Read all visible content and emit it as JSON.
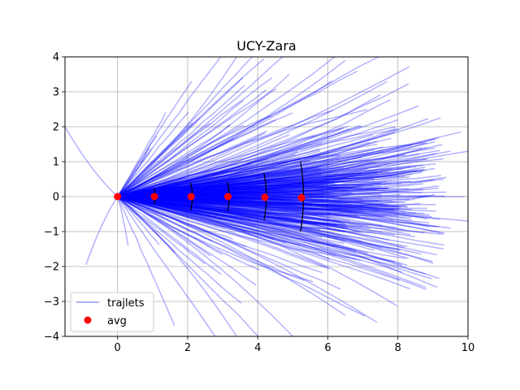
{
  "chart_data": {
    "type": "line",
    "title": "UCY-Zara",
    "xlabel": "",
    "ylabel": "",
    "xlim": [
      -1.5,
      10
    ],
    "ylim": [
      -4,
      4
    ],
    "x_ticks": [
      0,
      2,
      4,
      6,
      8,
      10
    ],
    "y_ticks": [
      -4,
      -3,
      -2,
      -1,
      0,
      1,
      2,
      3,
      4
    ],
    "x_tick_labels": [
      "0",
      "2",
      "4",
      "6",
      "8",
      "10"
    ],
    "y_tick_labels": [
      "−4",
      "−3",
      "−2",
      "−1",
      "0",
      "1",
      "2",
      "3",
      "4"
    ],
    "grid": true,
    "legend_position": "lower-left",
    "series": [
      {
        "name": "trajlets",
        "kind": "line",
        "color": "#0000ff",
        "alpha": 0.3,
        "count_estimate": 400,
        "example_endpoints": [
          [
            9.9,
            0.0
          ],
          [
            9.8,
            1.85
          ],
          [
            9.5,
            1.3
          ],
          [
            8.6,
            2.6
          ],
          [
            8.8,
            -2.6
          ],
          [
            7.4,
            -3.6
          ],
          [
            6.5,
            -3.4
          ],
          [
            5.0,
            -4.0
          ],
          [
            3.4,
            -4.0
          ],
          [
            6.5,
            3.9
          ],
          [
            3.4,
            4.0
          ],
          [
            4.9,
            3.5
          ],
          [
            -0.9,
            -1.95
          ],
          [
            -1.5,
            2.0
          ],
          [
            0.3,
            -1.4
          ],
          [
            0.9,
            1.4
          ],
          [
            8.0,
            2.2
          ],
          [
            7.7,
            3.3
          ],
          [
            10.0,
            1.3
          ],
          [
            10.0,
            -0.7
          ],
          [
            9.5,
            -0.9
          ]
        ]
      },
      {
        "name": "avg",
        "kind": "scatter",
        "color": "#ff0000",
        "points": [
          [
            0.0,
            0.0
          ],
          [
            1.05,
            0.0
          ],
          [
            2.1,
            0.0
          ],
          [
            3.15,
            0.0
          ],
          [
            4.2,
            -0.02
          ],
          [
            5.25,
            -0.03
          ]
        ]
      }
    ],
    "uncertainty_arcs": [
      {
        "x": 1.05,
        "half_height": 0.22
      },
      {
        "x": 2.1,
        "half_height": 0.4
      },
      {
        "x": 3.15,
        "half_height": 0.42
      },
      {
        "x": 4.2,
        "half_height": 0.68
      },
      {
        "x": 5.25,
        "half_height": 1.0
      }
    ]
  },
  "legend": {
    "items": [
      {
        "label": "trajlets",
        "color": "#0000ff"
      },
      {
        "label": "avg",
        "color": "#ff0000"
      }
    ]
  }
}
